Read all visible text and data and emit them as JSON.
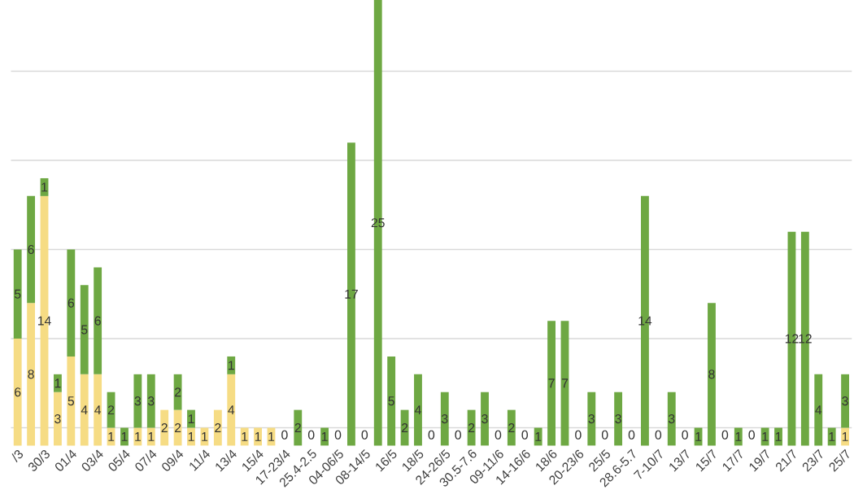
{
  "chart_data": {
    "type": "bar",
    "stacked": true,
    "grid": "y",
    "tick_labels": "x",
    "categories": [
      "/3",
      null,
      "30/3",
      null,
      "01/4",
      null,
      "03/4",
      null,
      "05/4",
      null,
      "07/4",
      null,
      "09/4",
      null,
      "11/4",
      null,
      "13/4",
      null,
      "15/4",
      null,
      "17-23/4",
      null,
      "25.4-2.5",
      null,
      "04-06/5",
      null,
      "08-14/5",
      null,
      "16/5",
      null,
      "18/5",
      null,
      "24-26/5",
      null,
      "30.5-7.6",
      null,
      "09-11/6",
      null,
      "14-16/6",
      null,
      "18/6",
      null,
      "20-23/6",
      null,
      "25/5",
      null,
      "28.6-5.7",
      null,
      "7-10/7",
      null,
      "13/7",
      null,
      "15/7",
      null,
      "17/7",
      null,
      "19/7",
      null,
      "21/7",
      null,
      "23/7",
      null,
      "25/7"
    ],
    "ylim": [
      0,
      25
    ],
    "yticks": [
      {
        "value": 1,
        "label": null
      },
      {
        "value": 6,
        "label": null
      },
      {
        "value": 11,
        "label": null
      },
      {
        "value": 16,
        "label": null
      },
      {
        "value": 21,
        "label": null
      }
    ],
    "series": [
      {
        "color": "#f6dc84",
        "values": [
          6,
          8,
          14,
          3,
          5,
          4,
          4,
          1,
          null,
          1,
          1,
          2,
          2,
          1,
          1,
          2,
          4,
          1,
          1,
          1,
          null,
          null,
          null,
          null,
          null,
          null,
          null,
          null,
          null,
          null,
          null,
          null,
          null,
          null,
          null,
          null,
          null,
          null,
          null,
          null,
          null,
          null,
          null,
          null,
          null,
          null,
          null,
          null,
          null,
          null,
          null,
          null,
          null,
          null,
          null,
          null,
          null,
          null,
          null,
          null,
          null,
          null,
          1
        ],
        "value_labels": [
          "6",
          "8",
          "14",
          "3",
          "5",
          "4",
          "4",
          "1",
          null,
          "1",
          "1",
          "2",
          "2",
          "1",
          "1",
          "2",
          "4",
          "1",
          "1",
          "1",
          null,
          null,
          null,
          null,
          null,
          null,
          null,
          null,
          null,
          null,
          null,
          null,
          null,
          null,
          null,
          null,
          null,
          null,
          null,
          null,
          null,
          null,
          null,
          null,
          null,
          null,
          null,
          null,
          null,
          null,
          null,
          null,
          null,
          null,
          null,
          null,
          null,
          null,
          null,
          null,
          null,
          null,
          "1"
        ]
      },
      {
        "color": "#6ea843",
        "values": [
          5,
          6,
          1,
          1,
          6,
          5,
          6,
          2,
          1,
          3,
          3,
          null,
          2,
          1,
          null,
          null,
          1,
          null,
          null,
          null,
          0,
          2,
          0,
          1,
          0,
          17,
          0,
          25,
          5,
          2,
          4,
          0,
          3,
          0,
          2,
          3,
          0,
          2,
          0,
          1,
          7,
          7,
          0,
          3,
          0,
          3,
          0,
          14,
          0,
          3,
          0,
          1,
          8,
          0,
          1,
          0,
          1,
          1,
          12,
          12,
          4,
          1,
          3
        ],
        "value_labels": [
          "5",
          "6",
          "1",
          "1",
          "6",
          "5",
          "6",
          "2",
          "1",
          "3",
          "3",
          null,
          "2",
          "1",
          null,
          null,
          "1",
          null,
          null,
          null,
          "0",
          "2",
          "0",
          "1",
          "0",
          "17",
          "0",
          "25",
          "5",
          "2",
          "4",
          "0",
          "3",
          "0",
          "2",
          "3",
          "0",
          "2",
          "0",
          "1",
          "7",
          "7",
          "0",
          "3",
          "0",
          "3",
          "0",
          "14",
          "0",
          "3",
          "0",
          "1",
          "8",
          "0",
          "1",
          "0",
          "1",
          "1",
          "12",
          "12",
          "4",
          "1",
          "3"
        ]
      }
    ]
  }
}
